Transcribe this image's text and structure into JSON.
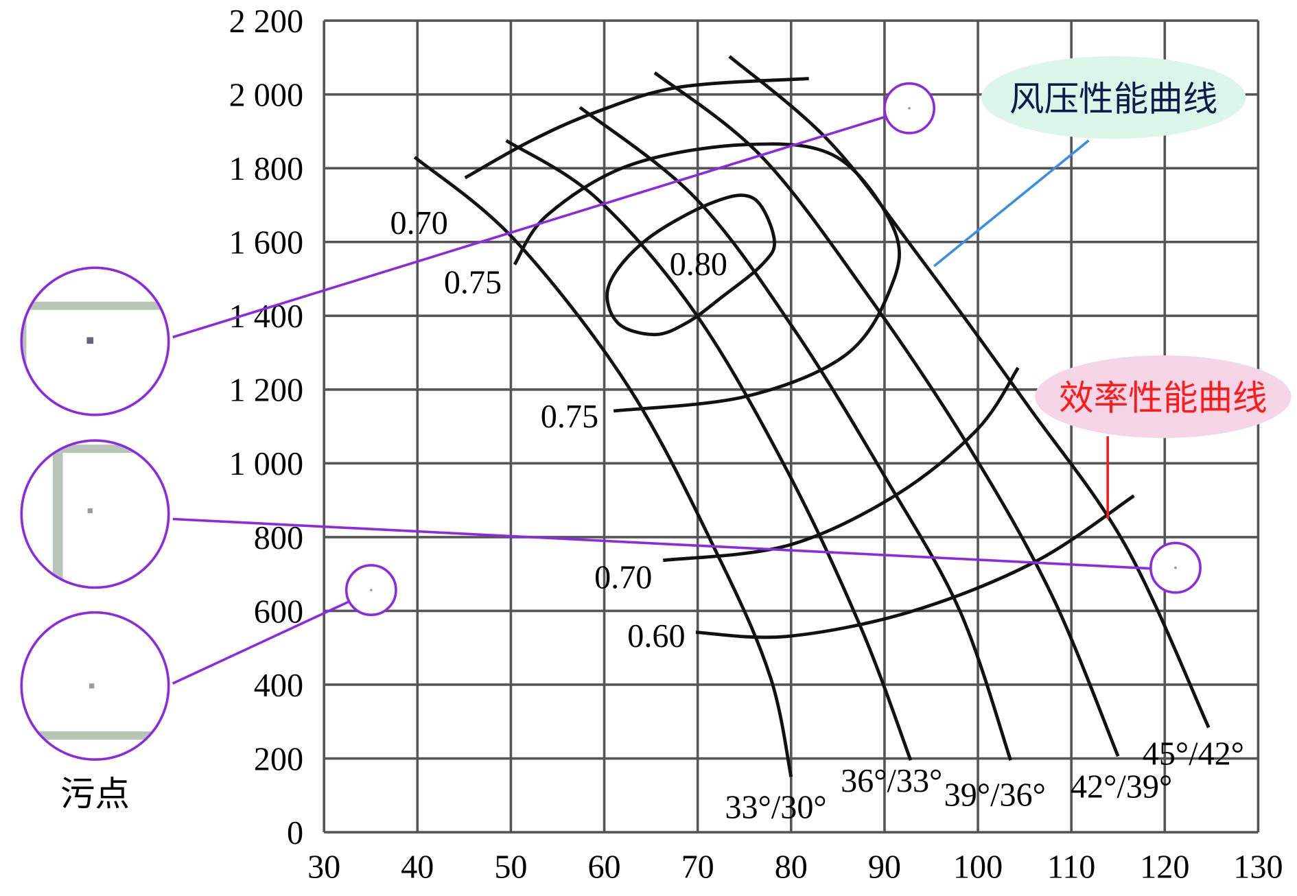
{
  "chart_data": {
    "type": "line",
    "title": "",
    "xlabel": "",
    "ylabel": "",
    "xlim": [
      30,
      130
    ],
    "ylim": [
      0,
      2200
    ],
    "grid": true,
    "x_ticks": [
      "30",
      "40",
      "50",
      "60",
      "70",
      "80",
      "90",
      "100",
      "110",
      "120",
      "130"
    ],
    "y_ticks": [
      "0",
      "200",
      "400",
      "600",
      "800",
      "1 000",
      "1 200",
      "1 400",
      "1 600",
      "1 800",
      "2 000",
      "2 200"
    ],
    "pressure_curves": [
      {
        "name": "33°/30°",
        "points": [
          [
            39.7,
            1830
          ],
          [
            50.4,
            1606
          ],
          [
            62.7,
            1203
          ],
          [
            72.5,
            733
          ],
          [
            77.8,
            419
          ],
          [
            80,
            150
          ]
        ]
      },
      {
        "name": "36°/33°",
        "points": [
          [
            49.5,
            1875
          ],
          [
            59.2,
            1718
          ],
          [
            69.8,
            1405
          ],
          [
            79.6,
            979
          ],
          [
            87.5,
            553
          ],
          [
            92.8,
            195
          ]
        ]
      },
      {
        "name": "39°/36°",
        "points": [
          [
            57.4,
            1965
          ],
          [
            69.8,
            1718
          ],
          [
            80.4,
            1360
          ],
          [
            90.2,
            957
          ],
          [
            98.1,
            598
          ],
          [
            103.5,
            195
          ]
        ]
      },
      {
        "name": "42°/39°",
        "points": [
          [
            65.4,
            2059
          ],
          [
            76.9,
            1830
          ],
          [
            88.4,
            1449
          ],
          [
            99,
            1046
          ],
          [
            107.9,
            643
          ],
          [
            115,
            206
          ]
        ]
      },
      {
        "name": "45°/42°",
        "points": [
          [
            73.4,
            2103
          ],
          [
            84,
            1875
          ],
          [
            93.7,
            1561
          ],
          [
            105.3,
            1158
          ],
          [
            115.8,
            777
          ],
          [
            124.7,
            284
          ]
        ]
      }
    ],
    "envelope_curve": [
      [
        45.1,
        1774
      ],
      [
        52.2,
        1875
      ],
      [
        59.2,
        1953
      ],
      [
        68.1,
        2020
      ],
      [
        81.9,
        2043
      ]
    ],
    "efficiency_curves": [
      {
        "name": "0.80",
        "closed": true,
        "points": [
          [
            60.5,
            1483
          ],
          [
            64.5,
            1606
          ],
          [
            71.6,
            1707
          ],
          [
            76.0,
            1718
          ],
          [
            78.2,
            1606
          ],
          [
            76.9,
            1539
          ],
          [
            72.5,
            1449
          ],
          [
            68.9,
            1382
          ],
          [
            65.4,
            1349
          ],
          [
            61.4,
            1382
          ]
        ]
      },
      {
        "name": "0.75",
        "closed": false,
        "points": [
          [
            50.4,
            1539
          ],
          [
            53.9,
            1673
          ],
          [
            62.7,
            1808
          ],
          [
            75.1,
            1864
          ],
          [
            84.9,
            1830
          ],
          [
            91.1,
            1629
          ],
          [
            90.6,
            1472
          ],
          [
            85.8,
            1293
          ],
          [
            75.1,
            1181
          ],
          [
            61.0,
            1142
          ]
        ]
      },
      {
        "name": "0.70",
        "closed": false,
        "points": [
          [
            66.3,
            737
          ],
          [
            79.6,
            777
          ],
          [
            91.1,
            912
          ],
          [
            99.9,
            1091
          ],
          [
            104.3,
            1259
          ]
        ]
      },
      {
        "name": "0.60",
        "closed": false,
        "points": [
          [
            69.8,
            542
          ],
          [
            79.6,
            531
          ],
          [
            92.8,
            598
          ],
          [
            106.1,
            733
          ],
          [
            116.7,
            912
          ]
        ]
      }
    ],
    "efficiency_labels": [
      "0.70",
      "0.75",
      "0.80",
      "0.75",
      "0.70",
      "0.60"
    ],
    "annotations": {
      "pressure_callout": "风压性能曲线",
      "efficiency_callout": "效率性能曲线",
      "dust_label": "污点"
    },
    "colors": {
      "curve": "#111111",
      "grid": "#555555",
      "dust_marker": "#8a2be2",
      "pressure_callout_bg": "#dcf7ea",
      "pressure_callout_text": "#0d1b4a",
      "pressure_pointer": "#3a8ee6",
      "efficiency_callout_bg": "#f6d6e6",
      "efficiency_callout_text": "#ff1a1a"
    }
  }
}
